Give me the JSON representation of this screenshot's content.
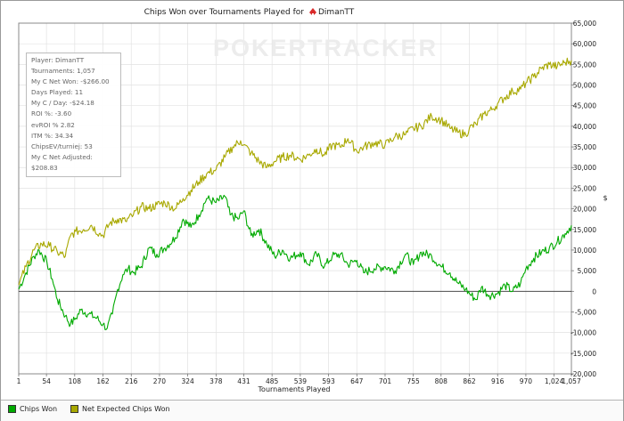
{
  "watermark": "POKERTRACKER",
  "stats_box": [
    "Player: DimanTT",
    "Tournaments: 1,057",
    "My C Net Won: -$266.00",
    "Days Played: 11",
    "My C / Day: -$24.18",
    "ROI %: -3.60",
    "evROI % 2.82",
    "ITM %: 34.34",
    "ChipsEV/turniej: 53",
    "My C Net Adjusted: $208.83"
  ],
  "legend": {
    "items": [
      {
        "label": "Chips Won"
      },
      {
        "label": "Net Expected Chips Won"
      }
    ]
  },
  "colors": {
    "chips_won": "#00aa00",
    "net_expected": "#a8a800",
    "grid": "#e2e2e2",
    "zero_line": "#333333"
  },
  "chart_data": {
    "type": "line",
    "title": "Chips Won over Tournaments Played for",
    "player_name": "DimanTT",
    "xlabel": "Tournaments Played",
    "ylabel": "",
    "right_axis_marker": "$",
    "xlim": [
      1,
      1057
    ],
    "ylim": [
      -20000,
      65000
    ],
    "x_ticks": [
      1,
      54,
      108,
      162,
      216,
      270,
      324,
      378,
      431,
      485,
      539,
      593,
      647,
      701,
      755,
      808,
      862,
      916,
      970,
      1024,
      1057
    ],
    "y_ticks": [
      -20000,
      -15000,
      -10000,
      -5000,
      0,
      5000,
      10000,
      15000,
      20000,
      25000,
      30000,
      35000,
      40000,
      45000,
      50000,
      55000,
      60000,
      65000
    ],
    "y_tick_labels": [
      "-20,000",
      "-15,000",
      "-10,000",
      "-5,000",
      "0",
      "5,000",
      "10,000",
      "15,000",
      "20,000",
      "25,000",
      "30,000",
      "35,000",
      "40,000",
      "45,000",
      "50,000",
      "55,000",
      "60,000",
      "65,000"
    ],
    "x_tick_labels": [
      "1",
      "54",
      "108",
      "162",
      "216",
      "270",
      "324",
      "378",
      "431",
      "485",
      "539",
      "593",
      "647",
      "701",
      "755",
      "808",
      "862",
      "916",
      "970",
      "1,024",
      "1,057"
    ],
    "grid": true,
    "legend_position": "bottom",
    "series": [
      {
        "name": "Chips Won",
        "x": [
          1,
          15,
          30,
          40,
          55,
          65,
          75,
          90,
          100,
          110,
          120,
          135,
          150,
          162,
          170,
          180,
          190,
          200,
          210,
          220,
          235,
          250,
          265,
          280,
          300,
          315,
          330,
          345,
          360,
          378,
          395,
          405,
          420,
          431,
          445,
          460,
          475,
          490,
          505,
          520,
          539,
          555,
          570,
          585,
          600,
          615,
          630,
          647,
          660,
          680,
          701,
          720,
          740,
          755,
          770,
          790,
          808,
          825,
          840,
          855,
          862,
          875,
          885,
          900,
          916,
          930,
          945,
          960,
          970,
          985,
          1000,
          1015,
          1030,
          1045,
          1057
        ],
        "y": [
          500,
          4500,
          8500,
          10000,
          7000,
          3000,
          -2000,
          -6000,
          -8000,
          -6500,
          -4500,
          -5500,
          -6500,
          -8000,
          -9000,
          -5500,
          500,
          4000,
          5500,
          4500,
          6000,
          10500,
          9000,
          10500,
          13000,
          17500,
          15500,
          18500,
          22500,
          21500,
          23000,
          18500,
          17500,
          19500,
          13500,
          15000,
          11500,
          8500,
          10000,
          8000,
          9500,
          6500,
          9000,
          6000,
          8500,
          9000,
          6500,
          7500,
          4500,
          5500,
          6000,
          5000,
          9000,
          6500,
          9500,
          8500,
          6000,
          4500,
          2000,
          500,
          -500,
          -2000,
          1000,
          -1000,
          -500,
          1500,
          0,
          2000,
          5500,
          8000,
          9500,
          10500,
          12000,
          14000,
          16000
        ]
      },
      {
        "name": "Net Expected Chips Won",
        "x": [
          1,
          15,
          30,
          45,
          60,
          75,
          90,
          100,
          110,
          125,
          140,
          155,
          162,
          175,
          190,
          205,
          220,
          235,
          250,
          265,
          280,
          300,
          315,
          330,
          345,
          360,
          378,
          395,
          410,
          425,
          431,
          445,
          460,
          475,
          490,
          505,
          520,
          539,
          555,
          570,
          585,
          600,
          615,
          630,
          647,
          660,
          680,
          701,
          720,
          740,
          755,
          770,
          790,
          808,
          825,
          840,
          855,
          862,
          875,
          890,
          905,
          916,
          930,
          945,
          960,
          970,
          985,
          1000,
          1015,
          1030,
          1045,
          1057
        ],
        "y": [
          1500,
          6000,
          10000,
          11500,
          11000,
          9500,
          8500,
          13500,
          14500,
          15000,
          16000,
          14000,
          13500,
          16500,
          17500,
          17000,
          18500,
          20500,
          20000,
          21000,
          21500,
          20000,
          22500,
          24500,
          26500,
          28500,
          29500,
          32500,
          35000,
          36500,
          35500,
          33500,
          31500,
          30000,
          31500,
          32500,
          33000,
          32000,
          33000,
          34500,
          33000,
          35500,
          35000,
          37000,
          34000,
          35000,
          36000,
          35500,
          37500,
          38000,
          39500,
          40000,
          42500,
          41500,
          39500,
          38500,
          38000,
          39500,
          40500,
          43000,
          44000,
          45500,
          47000,
          48500,
          49000,
          50500,
          52000,
          54000,
          55000,
          54500,
          55500,
          56000
        ]
      }
    ]
  }
}
